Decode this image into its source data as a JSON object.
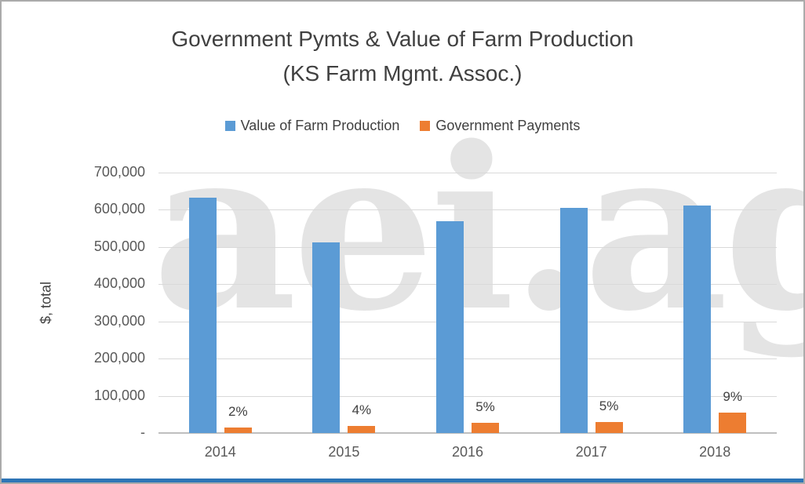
{
  "chart_data": {
    "type": "bar",
    "title": "Government Pymts & Value of Farm Production",
    "subtitle": "(KS Farm Mgmt. Assoc.)",
    "ylabel": "$, total",
    "categories": [
      "2014",
      "2015",
      "2016",
      "2017",
      "2018"
    ],
    "series": [
      {
        "name": "Value of Farm Production",
        "color": "#5B9BD5",
        "values": [
          632000,
          512000,
          570000,
          605000,
          612000
        ]
      },
      {
        "name": "Government Payments",
        "color": "#ED7D31",
        "values": [
          14000,
          20000,
          28000,
          30000,
          55000
        ],
        "labels": [
          "2%",
          "4%",
          "5%",
          "5%",
          "9%"
        ]
      }
    ],
    "ylim": [
      0,
      700000
    ],
    "ytick_step": 100000,
    "ytick_labels": [
      "-",
      "100,000",
      "200,000",
      "300,000",
      "400,000",
      "500,000",
      "600,000",
      "700,000"
    ],
    "grid": true,
    "legend_position": "top-center",
    "watermark": "aei.ag",
    "accent_strip_color": "#2E75B6"
  }
}
